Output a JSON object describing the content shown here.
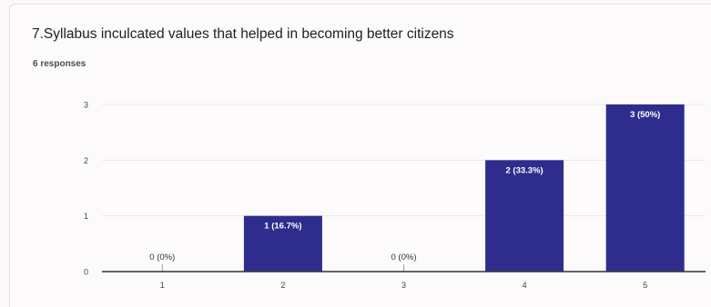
{
  "question": {
    "title": "7.Syllabus inculcated values that helped in becoming better citizens",
    "responses": "6 responses"
  },
  "colors": {
    "bar": "#2e2d8e",
    "bar_label_text": "#ffffff",
    "axis": "#333333",
    "grid": "#ebe7e7",
    "tick_text": "#444444"
  },
  "chart_data": {
    "type": "bar",
    "categories": [
      "1",
      "2",
      "3",
      "4",
      "5"
    ],
    "values": [
      0,
      1,
      0,
      2,
      3
    ],
    "data_labels": [
      "0 (0%)",
      "1 (16.7%)",
      "0 (0%)",
      "2 (33.3%)",
      "3 (50%)"
    ],
    "y_ticks": [
      "0",
      "1",
      "2",
      "3"
    ],
    "ylim": [
      0,
      3
    ],
    "grid": true,
    "legend": "none",
    "title": "",
    "xlabel": "",
    "ylabel": ""
  }
}
